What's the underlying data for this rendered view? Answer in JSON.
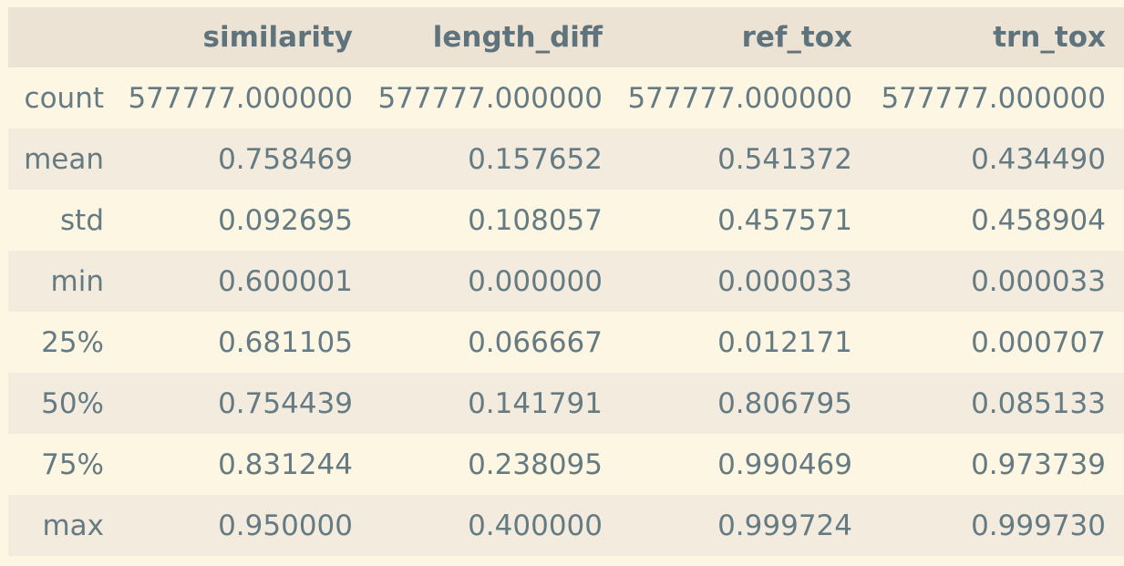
{
  "table": {
    "corner": "",
    "columns": [
      "similarity",
      "length_diff",
      "ref_tox",
      "trn_tox"
    ],
    "rows": [
      {
        "label": "count",
        "values": [
          "577777.000000",
          "577777.000000",
          "577777.000000",
          "577777.000000"
        ]
      },
      {
        "label": "mean",
        "values": [
          "0.758469",
          "0.157652",
          "0.541372",
          "0.434490"
        ]
      },
      {
        "label": "std",
        "values": [
          "0.092695",
          "0.108057",
          "0.457571",
          "0.458904"
        ]
      },
      {
        "label": "min",
        "values": [
          "0.600001",
          "0.000000",
          "0.000033",
          "0.000033"
        ]
      },
      {
        "label": "25%",
        "values": [
          "0.681105",
          "0.066667",
          "0.012171",
          "0.000707"
        ]
      },
      {
        "label": "50%",
        "values": [
          "0.754439",
          "0.141791",
          "0.806795",
          "0.085133"
        ]
      },
      {
        "label": "75%",
        "values": [
          "0.831244",
          "0.238095",
          "0.990469",
          "0.973739"
        ]
      },
      {
        "label": "max",
        "values": [
          "0.950000",
          "0.400000",
          "0.999724",
          "0.999730"
        ]
      }
    ]
  },
  "colors": {
    "background": "#fdf6e3",
    "header_background": "#ece3d4",
    "stripe_background": "#f3ecde",
    "text": "#657b83"
  }
}
